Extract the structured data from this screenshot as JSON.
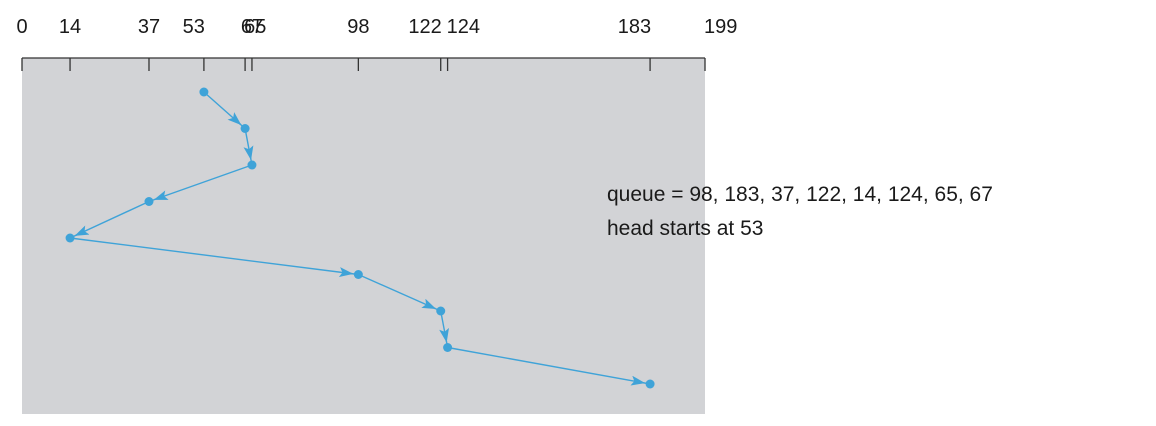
{
  "chart_data": {
    "type": "line",
    "x_ticks": [
      0,
      14,
      37,
      53,
      65,
      67,
      98,
      122,
      124,
      183,
      199
    ],
    "x_tick_labels": [
      "0",
      "14",
      "37",
      "53",
      "65",
      "67",
      "98",
      "122",
      "124",
      "183",
      "199"
    ],
    "xlim": [
      0,
      199
    ],
    "head_path": [
      53,
      65,
      67,
      37,
      14,
      98,
      122,
      124,
      183
    ],
    "colors": {
      "background": "#d2d3d6",
      "path": "#3fa3d8",
      "axis": "#333333"
    }
  },
  "caption": {
    "queue_line": "queue = 98, 183, 37, 122, 14, 124, 65, 67",
    "head_line": "head starts at 53"
  }
}
